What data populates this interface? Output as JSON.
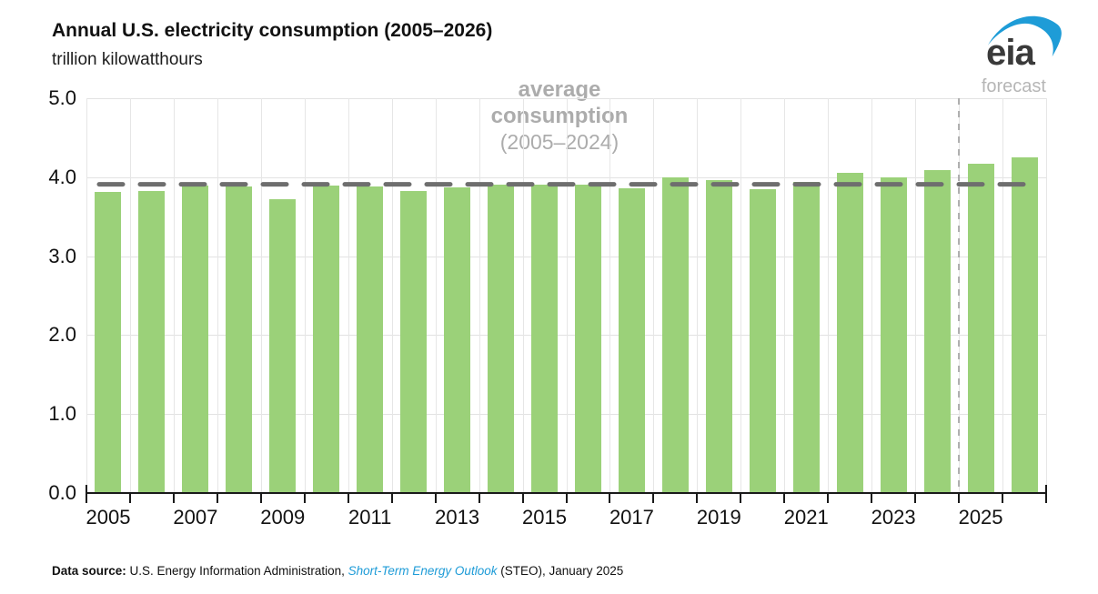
{
  "header": {
    "title": "Annual U.S. electricity consumption (2005–2026)",
    "subtitle": "trillion kilowatthours"
  },
  "logo": {
    "text": "eia",
    "swoosh_color": "#1e9cd7",
    "text_color": "#3a3a3a"
  },
  "chart_data": {
    "type": "bar",
    "title": "Annual U.S. electricity consumption (2005–2026)",
    "ylabel": "trillion kilowatthours",
    "xlabel": "",
    "categories": [
      "2005",
      "2006",
      "2007",
      "2008",
      "2009",
      "2010",
      "2011",
      "2012",
      "2013",
      "2014",
      "2015",
      "2016",
      "2017",
      "2018",
      "2019",
      "2020",
      "2021",
      "2022",
      "2023",
      "2024",
      "2025",
      "2026"
    ],
    "values": [
      3.81,
      3.82,
      3.89,
      3.88,
      3.72,
      3.89,
      3.88,
      3.83,
      3.87,
      3.9,
      3.9,
      3.9,
      3.86,
      4.0,
      3.96,
      3.85,
      3.94,
      4.06,
      4.0,
      4.09,
      4.17,
      4.25
    ],
    "bar_color": "#9bd179",
    "ylim": [
      0,
      5.0
    ],
    "ytick_labels": [
      "0.0",
      "1.0",
      "2.0",
      "3.0",
      "4.0",
      "5.0"
    ],
    "xtick_labels": [
      "2005",
      "2007",
      "2009",
      "2011",
      "2013",
      "2015",
      "2017",
      "2019",
      "2021",
      "2023",
      "2025"
    ],
    "grid": true,
    "legend_position": "none",
    "average_line": {
      "value": 3.91,
      "color": "#6e6e6e",
      "label_line1": "average",
      "label_line2": "consumption",
      "label_line3": "(2005–2024)"
    },
    "forecast": {
      "label": "forecast",
      "divider_after_category": "2024",
      "line_color": "#ababab"
    }
  },
  "footer": {
    "prefix_bold": "Data source:",
    "text_before_link": " U.S. Energy Information Administration, ",
    "link": "Short-Term Energy Outlook",
    "text_after_link": " (STEO), January 2025"
  }
}
